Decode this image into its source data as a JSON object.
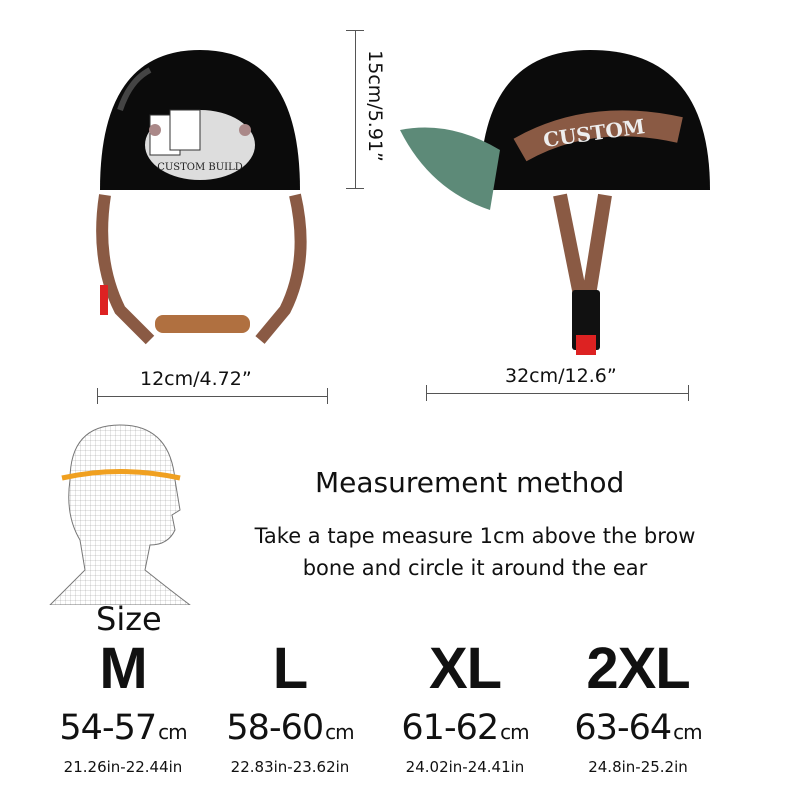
{
  "dimensions": {
    "height": "15cm/5.91”",
    "width_front": "12cm/4.72”",
    "length_side": "32cm/12.6”"
  },
  "product_graphics": {
    "front_print": "CUSTOM BUILD",
    "side_print": "CUSTOM"
  },
  "measurement": {
    "title": "Measurement method",
    "description_line1": "Take a tape measure 1cm above the brow",
    "description_line2": "bone and circle it around the ear"
  },
  "size_heading": "Size",
  "sizes": [
    {
      "label": "M",
      "cm": "54-57",
      "unit": "cm",
      "inches": "21.26in-22.44in"
    },
    {
      "label": "L",
      "cm": "58-60",
      "unit": "cm",
      "inches": "22.83in-23.62in"
    },
    {
      "label": "XL",
      "cm": "61-62",
      "unit": "cm",
      "inches": "24.02in-24.41in"
    },
    {
      "label": "2XL",
      "cm": "63-64",
      "unit": "cm",
      "inches": "24.8in-25.2in"
    }
  ],
  "colors": {
    "helmet": "#0b0b0b",
    "strap": "#8a5a44",
    "visor": "#5d8a78",
    "tape": "#f0a020"
  }
}
